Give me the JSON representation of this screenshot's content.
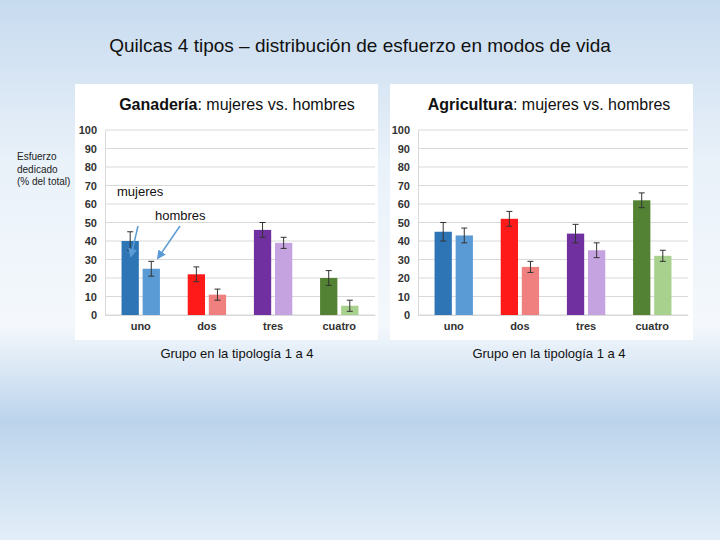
{
  "title": "Quilcas 4 tipos – distribución de esfuerzo en modos de vida",
  "chart_data": [
    {
      "type": "bar",
      "title": "Ganadería: mujeres vs. hombres",
      "xlabel": "Grupo en la tipología 1 a 4",
      "ylabel": [
        "Esfuerzo",
        "dedicado",
        "(% del total)"
      ],
      "categories": [
        "uno",
        "dos",
        "tres",
        "cuatro"
      ],
      "series": [
        {
          "name": "mujeres",
          "colors": [
            "#2e75b6",
            "#ff1a1a",
            "#7030a0",
            "#548235"
          ],
          "values": [
            40,
            22,
            46,
            20
          ],
          "errors": [
            5,
            4,
            4,
            4
          ]
        },
        {
          "name": "hombres",
          "colors": [
            "#5b9bd5",
            "#f08080",
            "#c5a3e0",
            "#a9d18e"
          ],
          "values": [
            25,
            11,
            39,
            5
          ],
          "errors": [
            4,
            3,
            3,
            3
          ]
        }
      ],
      "ylim": [
        0,
        100
      ],
      "yticks": [
        0,
        10,
        20,
        30,
        40,
        50,
        60,
        70,
        80,
        90,
        100
      ],
      "grid": true
    },
    {
      "type": "bar",
      "title": "Agricultura: mujeres vs. hombres",
      "xlabel": "Grupo en la tipología 1 a 4",
      "categories": [
        "uno",
        "dos",
        "tres",
        "cuatro"
      ],
      "series": [
        {
          "colors": [
            "#2e75b6",
            "#ff1a1a",
            "#7030a0",
            "#548235"
          ],
          "values": [
            45,
            52,
            44,
            62
          ],
          "errors": [
            5,
            4,
            5,
            4
          ]
        },
        {
          "colors": [
            "#5b9bd5",
            "#f08080",
            "#c5a3e0",
            "#a9d18e"
          ],
          "values": [
            43,
            26,
            35,
            32
          ],
          "errors": [
            4,
            3,
            4,
            3
          ]
        }
      ],
      "ylim": [
        0,
        100
      ],
      "yticks": [
        0,
        10,
        20,
        30,
        40,
        50,
        60,
        70,
        80,
        90,
        100
      ],
      "grid": true
    }
  ]
}
